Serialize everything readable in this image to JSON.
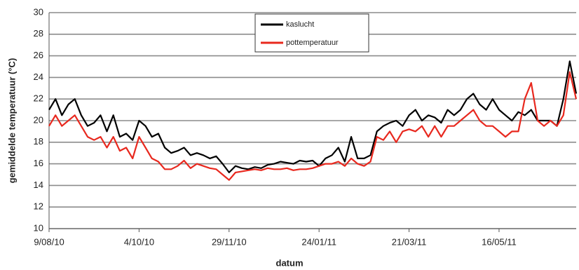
{
  "chart_data": {
    "type": "line",
    "xlabel": "datum",
    "ylabel": "gemiddelde temperatuur (°C)",
    "x": [
      "2010-08-09",
      "2010-08-13",
      "2010-08-17",
      "2010-08-21",
      "2010-08-25",
      "2010-08-29",
      "2010-09-02",
      "2010-09-06",
      "2010-09-10",
      "2010-09-14",
      "2010-09-18",
      "2010-09-22",
      "2010-09-26",
      "2010-09-30",
      "2010-10-04",
      "2010-10-08",
      "2010-10-12",
      "2010-10-16",
      "2010-10-20",
      "2010-10-24",
      "2010-10-28",
      "2010-11-01",
      "2010-11-05",
      "2010-11-09",
      "2010-11-13",
      "2010-11-17",
      "2010-11-21",
      "2010-11-25",
      "2010-11-29",
      "2010-12-03",
      "2010-12-07",
      "2010-12-11",
      "2010-12-15",
      "2010-12-19",
      "2010-12-23",
      "2010-12-27",
      "2010-12-31",
      "2011-01-04",
      "2011-01-08",
      "2011-01-12",
      "2011-01-16",
      "2011-01-20",
      "2011-01-24",
      "2011-01-28",
      "2011-02-01",
      "2011-02-05",
      "2011-02-09",
      "2011-02-13",
      "2011-02-17",
      "2011-02-21",
      "2011-02-25",
      "2011-03-01",
      "2011-03-05",
      "2011-03-09",
      "2011-03-13",
      "2011-03-17",
      "2011-03-21",
      "2011-03-25",
      "2011-03-29",
      "2011-04-02",
      "2011-04-06",
      "2011-04-10",
      "2011-04-14",
      "2011-04-18",
      "2011-04-22",
      "2011-04-26",
      "2011-04-30",
      "2011-05-04",
      "2011-05-08",
      "2011-05-12",
      "2011-05-16",
      "2011-05-20",
      "2011-05-24",
      "2011-05-28",
      "2011-06-01",
      "2011-06-05",
      "2011-06-09",
      "2011-06-13",
      "2011-06-17",
      "2011-06-21",
      "2011-06-25",
      "2011-06-29",
      "2011-07-03"
    ],
    "series": [
      {
        "name": "kaslucht",
        "color": "#000000",
        "values": [
          21,
          22,
          20.5,
          21.5,
          22,
          20.5,
          19.5,
          19.8,
          20.5,
          19,
          20.5,
          18.5,
          18.8,
          18.2,
          20,
          19.5,
          18.5,
          18.8,
          17.5,
          17,
          17.2,
          17.5,
          16.8,
          17,
          16.8,
          16.5,
          16.7,
          16,
          15.2,
          15.8,
          15.6,
          15.5,
          15.7,
          15.6,
          15.9,
          16,
          16.2,
          16.1,
          16,
          16.3,
          16.2,
          16.3,
          15.8,
          16.5,
          16.8,
          17.5,
          16.2,
          18.5,
          16.5,
          16.5,
          16.8,
          19,
          19.5,
          19.8,
          20,
          19.5,
          20.5,
          21,
          20,
          20.5,
          20.3,
          19.8,
          21,
          20.5,
          21,
          22,
          22.5,
          21.5,
          21,
          22,
          21,
          20.5,
          20,
          20.8,
          20.5,
          21,
          20,
          20,
          20,
          19.5,
          22,
          25.5,
          22.5
        ]
      },
      {
        "name": "pottemperatuur",
        "color": "#e8281e",
        "values": [
          19.5,
          20.5,
          19.5,
          20,
          20.5,
          19.5,
          18.5,
          18.2,
          18.5,
          17.5,
          18.5,
          17.2,
          17.5,
          16.5,
          18.5,
          17.5,
          16.5,
          16.2,
          15.5,
          15.5,
          15.8,
          16.3,
          15.6,
          16,
          15.8,
          15.6,
          15.5,
          15,
          14.5,
          15.2,
          15.3,
          15.4,
          15.5,
          15.4,
          15.6,
          15.5,
          15.5,
          15.6,
          15.4,
          15.5,
          15.5,
          15.6,
          15.8,
          16,
          16,
          16.2,
          15.8,
          16.5,
          16,
          15.8,
          16.2,
          18.5,
          18.2,
          19,
          18,
          19,
          19.2,
          19,
          19.5,
          18.5,
          19.5,
          18.5,
          19.5,
          19.5,
          20,
          20.5,
          21,
          20,
          19.5,
          19.5,
          19,
          18.5,
          19,
          19,
          22,
          23.5,
          20,
          19.5,
          20,
          19.5,
          20.5,
          24.5,
          22
        ]
      }
    ],
    "xlim": [
      "2010-08-09",
      "2011-07-03"
    ],
    "xticks": [
      {
        "value": "2010-08-09",
        "label": "9/08/10"
      },
      {
        "value": "2010-10-04",
        "label": "4/10/10"
      },
      {
        "value": "2010-11-29",
        "label": "29/11/10"
      },
      {
        "value": "2011-01-24",
        "label": "24/01/11"
      },
      {
        "value": "2011-03-21",
        "label": "21/03/11"
      },
      {
        "value": "2011-05-16",
        "label": "16/05/11"
      }
    ],
    "ylim": [
      10,
      30
    ],
    "yticks": [
      10,
      12,
      14,
      16,
      18,
      20,
      22,
      24,
      26,
      28,
      30
    ],
    "grid": true
  }
}
